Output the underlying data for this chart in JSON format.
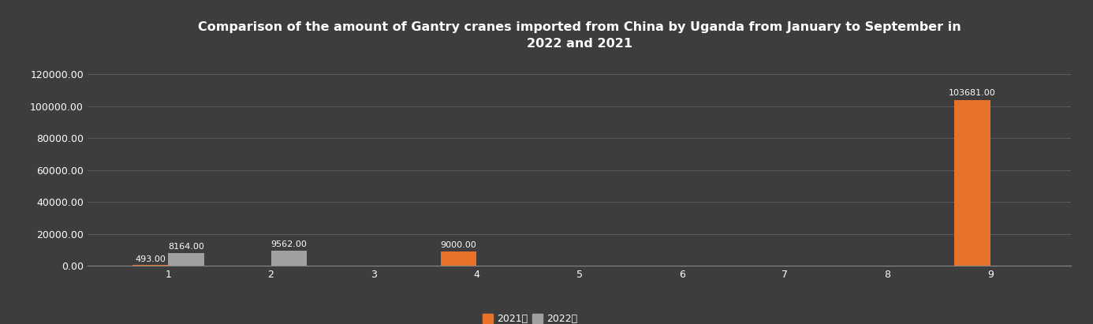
{
  "title": "Comparison of the amount of Gantry cranes imported from China by Uganda from January to September in\n2022 and 2021",
  "months": [
    1,
    2,
    3,
    4,
    5,
    6,
    7,
    8,
    9
  ],
  "values_2021": [
    493,
    0,
    0,
    9000,
    0,
    0,
    0,
    0,
    103681
  ],
  "values_2022": [
    8164,
    9562,
    0,
    0,
    0,
    0,
    0,
    0,
    0
  ],
  "bar_color_2021": "#E8722A",
  "bar_color_2022": "#A0A0A0",
  "background_color": "#3d3d3d",
  "text_color": "#ffffff",
  "grid_color": "#5a5a5a",
  "ylim": [
    0,
    130000
  ],
  "yticks": [
    0,
    20000,
    40000,
    60000,
    80000,
    100000,
    120000
  ],
  "bar_width": 0.35,
  "legend_2021": "2021年",
  "legend_2022": "2022年",
  "annotations": [
    {
      "month": 1,
      "series": "2021",
      "value": 493,
      "label": "493.00"
    },
    {
      "month": 1,
      "series": "2022",
      "value": 8164,
      "label": "8164.00"
    },
    {
      "month": 2,
      "series": "2022",
      "value": 9562,
      "label": "9562.00"
    },
    {
      "month": 4,
      "series": "2021",
      "value": 9000,
      "label": "9000.00"
    },
    {
      "month": 9,
      "series": "2021",
      "value": 103681,
      "label": "103681.00"
    }
  ]
}
